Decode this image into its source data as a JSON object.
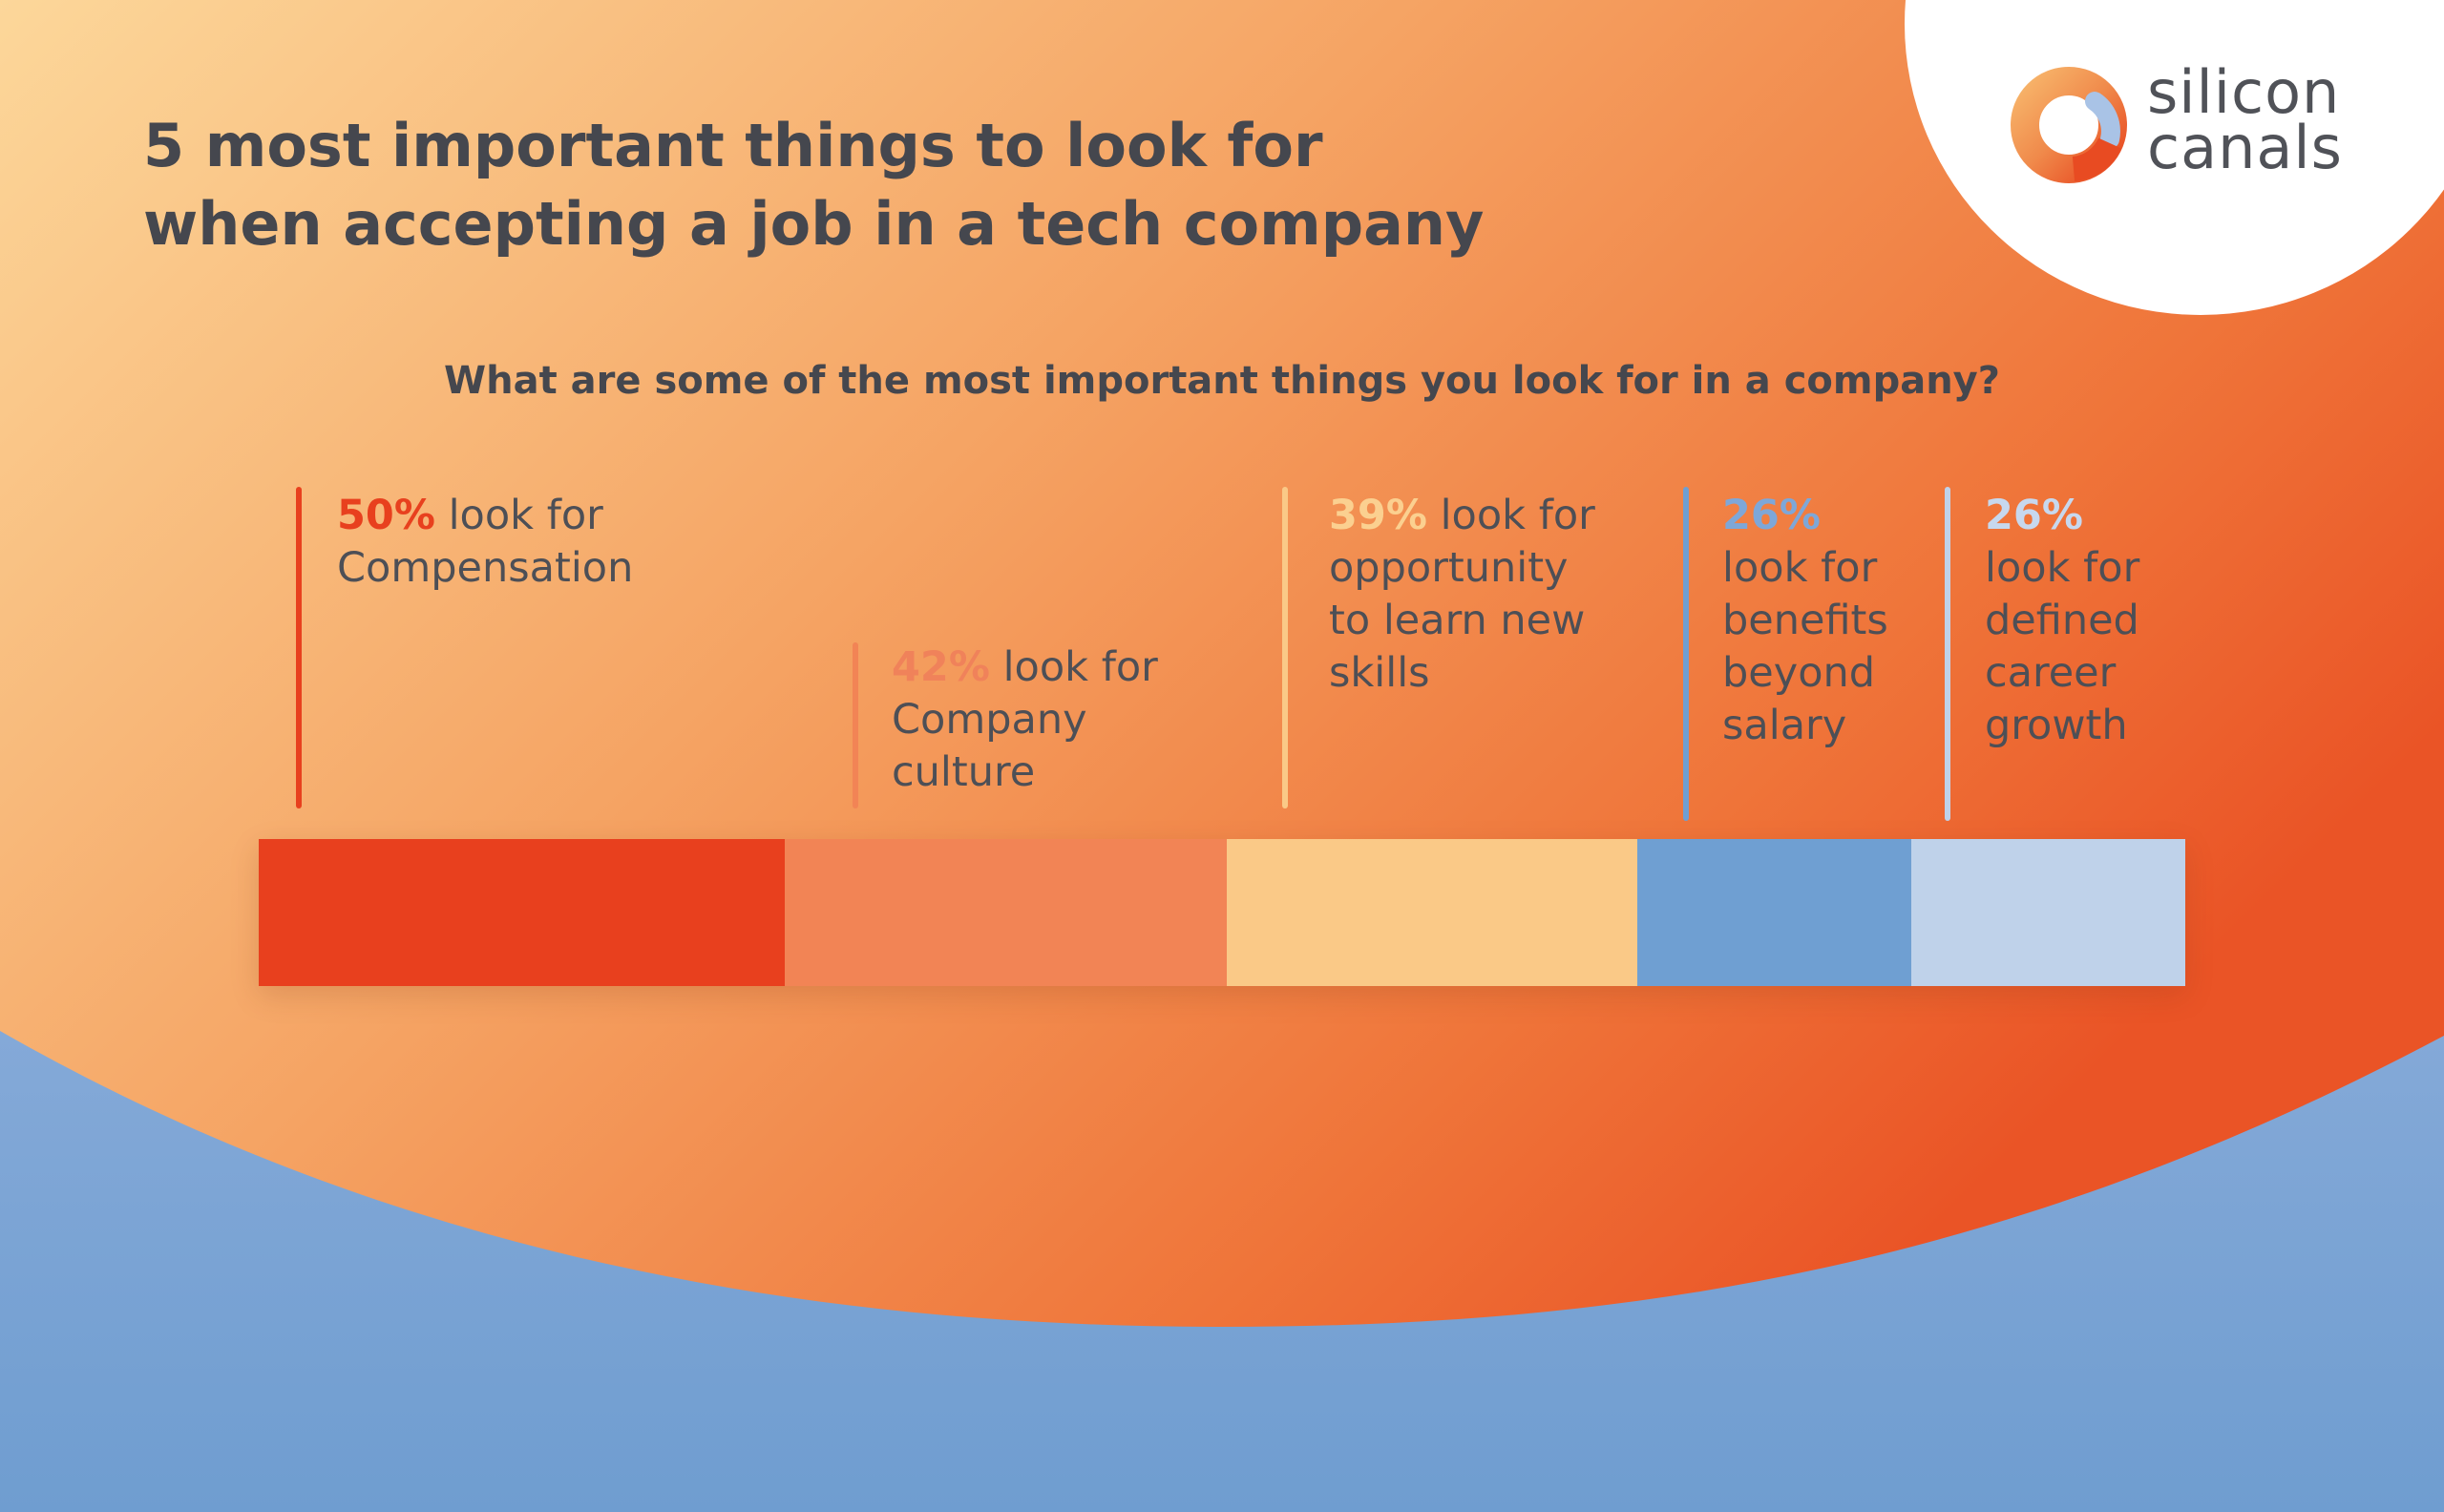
{
  "title": {
    "line1": "5 most important things to look for",
    "line2": "when accepting a job in a tech company"
  },
  "question": "What are some of the most important things you look for in a company?",
  "logo": {
    "word1": "silicon",
    "word2": "canals"
  },
  "colors": {
    "compensation": "#e8401e",
    "culture": "#f28455",
    "skills": "#fac987",
    "benefits": "#6f9fd2",
    "career": "#bfd2ea",
    "text_dark": "#45474e",
    "pct_culture": "#f0825a",
    "pct_skills": "#fbd090",
    "pct_benefits": "#7ea7d8",
    "pct_career": "#c7d8ee"
  },
  "chart_data": {
    "type": "bar",
    "title": "5 most important things to look for when accepting a job in a tech company",
    "subtitle": "What are some of the most important things you look for in a company?",
    "categories": [
      "Compensation",
      "Company culture",
      "opportunity to learn new skills",
      "benefits beyond salary",
      "defined career growth"
    ],
    "values": [
      50,
      42,
      39,
      26,
      26
    ],
    "unit": "%",
    "orientation": "stacked-horizontal",
    "labels": [
      {
        "pct": "50%",
        "text": " look for\nCompensation"
      },
      {
        "pct": "42%",
        "text": " look for\nCompany\nculture"
      },
      {
        "pct": "39%",
        "text": " look for\nopportunity\nto learn new\nskills"
      },
      {
        "pct": "26%",
        "text": "\nlook for\nbenefits\nbeyond\nsalary"
      },
      {
        "pct": "26%",
        "text": "\nlook for\ndefined\ncareer\ngrowth"
      }
    ],
    "grid": false,
    "legend": "none"
  }
}
